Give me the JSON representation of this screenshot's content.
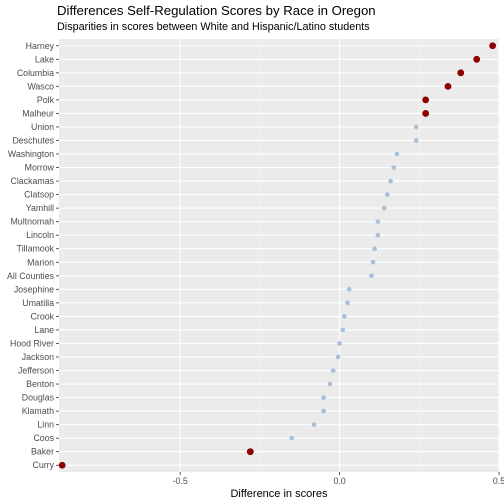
{
  "chart_data": {
    "type": "scatter",
    "title": "Differences Self-Regulation Scores by Race in Oregon",
    "subtitle": "Disparities in scores between White and Hispanic/Latino students",
    "xlabel": "Difference in scores",
    "ylabel": "",
    "xlim": [
      -0.88,
      0.5
    ],
    "xticks": [
      -0.5,
      0.0,
      0.5
    ],
    "xtick_labels": [
      "-0.5",
      "0.0",
      "0.5"
    ],
    "grid": true,
    "legend": "none",
    "highlight_color": "#8b0000",
    "normal_color": "#a7bfd8",
    "points": [
      {
        "label": "Harney",
        "value": 0.48,
        "highlight": true
      },
      {
        "label": "Lake",
        "value": 0.43,
        "highlight": true
      },
      {
        "label": "Columbia",
        "value": 0.38,
        "highlight": true
      },
      {
        "label": "Wasco",
        "value": 0.34,
        "highlight": true
      },
      {
        "label": "Polk",
        "value": 0.27,
        "highlight": true
      },
      {
        "label": "Malheur",
        "value": 0.27,
        "highlight": true
      },
      {
        "label": "Union",
        "value": 0.24,
        "highlight": false
      },
      {
        "label": "Deschutes",
        "value": 0.24,
        "highlight": false
      },
      {
        "label": "Washington",
        "value": 0.18,
        "highlight": false
      },
      {
        "label": "Morrow",
        "value": 0.17,
        "highlight": false
      },
      {
        "label": "Clackamas",
        "value": 0.16,
        "highlight": false
      },
      {
        "label": "Clatsop",
        "value": 0.15,
        "highlight": false
      },
      {
        "label": "Yamhill",
        "value": 0.14,
        "highlight": false
      },
      {
        "label": "Multnomah",
        "value": 0.12,
        "highlight": false
      },
      {
        "label": "Lincoln",
        "value": 0.12,
        "highlight": false
      },
      {
        "label": "Tillamook",
        "value": 0.11,
        "highlight": false
      },
      {
        "label": "Marion",
        "value": 0.105,
        "highlight": false
      },
      {
        "label": "All Counties",
        "value": 0.1,
        "highlight": false
      },
      {
        "label": "Josephine",
        "value": 0.03,
        "highlight": false
      },
      {
        "label": "Umatilla",
        "value": 0.025,
        "highlight": false
      },
      {
        "label": "Crook",
        "value": 0.015,
        "highlight": false
      },
      {
        "label": "Lane",
        "value": 0.01,
        "highlight": false
      },
      {
        "label": "Hood River",
        "value": 0.0,
        "highlight": false
      },
      {
        "label": "Jackson",
        "value": -0.005,
        "highlight": false
      },
      {
        "label": "Jefferson",
        "value": -0.02,
        "highlight": false
      },
      {
        "label": "Benton",
        "value": -0.03,
        "highlight": false
      },
      {
        "label": "Douglas",
        "value": -0.05,
        "highlight": false
      },
      {
        "label": "Klamath",
        "value": -0.05,
        "highlight": false
      },
      {
        "label": "Linn",
        "value": -0.08,
        "highlight": false
      },
      {
        "label": "Coos",
        "value": -0.15,
        "highlight": false
      },
      {
        "label": "Baker",
        "value": -0.28,
        "highlight": true
      },
      {
        "label": "Curry",
        "value": -0.87,
        "highlight": true
      }
    ]
  }
}
